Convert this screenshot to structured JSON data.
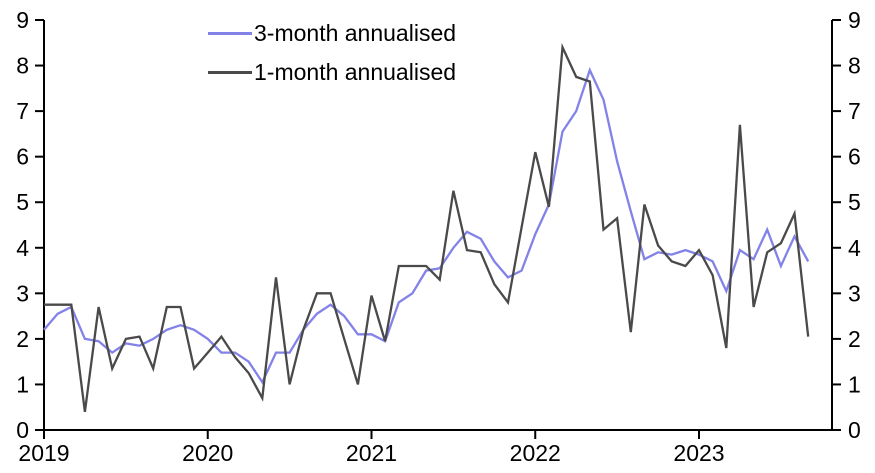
{
  "chart_data": {
    "type": "line",
    "title": "",
    "x_axis": {
      "tick_labels": [
        "2019",
        "2020",
        "2021",
        "2022",
        "2023"
      ],
      "start_month": "2019-01",
      "end_month": "2023-09",
      "months_shown": 57
    },
    "y_axis": {
      "ticks": [
        "0",
        "1",
        "2",
        "3",
        "4",
        "5",
        "6",
        "7",
        "8",
        "9"
      ],
      "ylim": [
        0,
        9
      ],
      "mirrored_right_axis": true
    },
    "grid": "off",
    "legend_position": "top-left-inset",
    "series": [
      {
        "name": "3-month annualised",
        "color": "#8282E8",
        "values": [
          2.2,
          2.55,
          2.7,
          2.0,
          1.95,
          1.7,
          1.9,
          1.85,
          2.0,
          2.2,
          2.3,
          2.2,
          2.0,
          1.7,
          1.7,
          1.5,
          1.05,
          1.7,
          1.7,
          2.2,
          2.55,
          2.75,
          2.5,
          2.1,
          2.1,
          1.95,
          2.8,
          3.0,
          3.5,
          3.55,
          4.0,
          4.35,
          4.2,
          3.7,
          3.35,
          3.5,
          4.3,
          4.95,
          6.55,
          7.0,
          7.9,
          7.25,
          5.9,
          4.8,
          3.75,
          3.9,
          3.85,
          3.95,
          3.85,
          3.7,
          3.05,
          3.95,
          3.75,
          4.4,
          3.6,
          4.25,
          3.7
        ]
      },
      {
        "name": "1-month annualised",
        "color": "#4A4A4A",
        "values": [
          2.75,
          2.75,
          2.75,
          0.4,
          2.7,
          1.35,
          2.0,
          2.05,
          1.35,
          2.7,
          2.7,
          1.35,
          1.7,
          2.05,
          1.6,
          1.25,
          0.7,
          3.35,
          1.0,
          2.2,
          3.0,
          3.0,
          2.0,
          1.0,
          2.95,
          1.95,
          3.6,
          3.6,
          3.6,
          3.3,
          5.25,
          3.95,
          3.9,
          3.2,
          2.8,
          4.45,
          6.1,
          4.9,
          8.4,
          7.75,
          7.65,
          4.4,
          4.65,
          2.15,
          4.95,
          4.05,
          3.7,
          3.6,
          3.95,
          3.4,
          1.8,
          6.7,
          2.7,
          3.9,
          4.1,
          4.75,
          2.05
        ]
      }
    ]
  },
  "colors": {
    "axis": "#000000",
    "background": "#FFFFFF"
  }
}
